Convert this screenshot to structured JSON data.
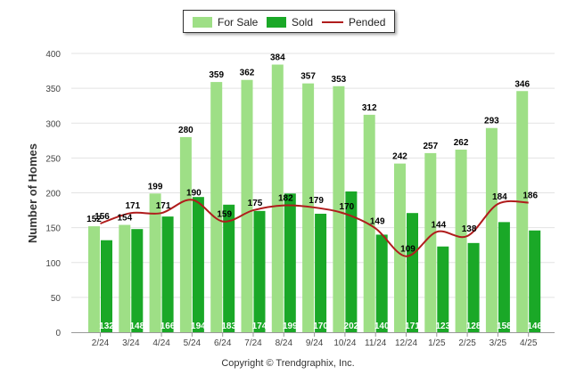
{
  "chart_data": {
    "type": "bar",
    "ylabel": "Number of Homes",
    "xlabel": "",
    "ylim": [
      0,
      400
    ],
    "yticks": [
      0,
      50,
      100,
      150,
      200,
      250,
      300,
      350,
      400
    ],
    "categories": [
      "2/24",
      "3/24",
      "4/24",
      "5/24",
      "6/24",
      "7/24",
      "8/24",
      "9/24",
      "10/24",
      "11/24",
      "12/24",
      "1/25",
      "2/25",
      "3/25",
      "4/25"
    ],
    "series": [
      {
        "name": "For Sale",
        "kind": "bar",
        "color": "#9edf86",
        "label_color": "#000000",
        "values": [
          152,
          154,
          199,
          280,
          359,
          362,
          384,
          357,
          353,
          312,
          242,
          257,
          262,
          293,
          346
        ]
      },
      {
        "name": "Sold",
        "kind": "bar",
        "color": "#1aa827",
        "label_color": "#ffffff",
        "values": [
          132,
          148,
          166,
          194,
          183,
          174,
          199,
          170,
          202,
          140,
          171,
          123,
          128,
          158,
          146
        ]
      },
      {
        "name": "Pended",
        "kind": "line",
        "color": "#b01c1c",
        "values": [
          156,
          171,
          171,
          190,
          159,
          175,
          182,
          179,
          170,
          149,
          109,
          144,
          138,
          184,
          186
        ]
      }
    ],
    "legend_position": "top",
    "grid": true
  },
  "footer": {
    "copyright": "Copyright © Trendgraphix, Inc."
  }
}
